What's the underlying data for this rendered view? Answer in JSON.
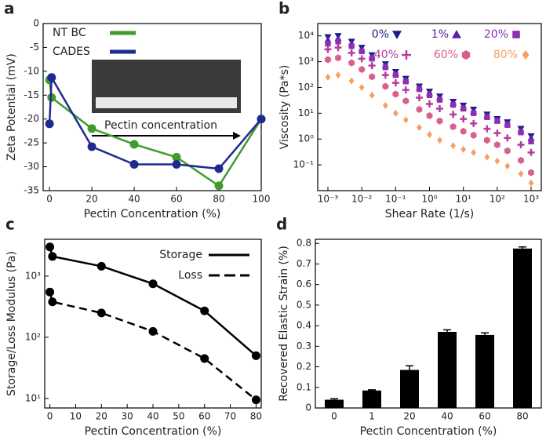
{
  "chart_data": [
    {
      "type": "line",
      "panel": "a",
      "xlabel": "Pectin Concentration (%)",
      "ylabel": "Zeta Potential (mV)",
      "x": [
        0,
        1,
        20,
        40,
        60,
        80,
        100
      ],
      "series": [
        {
          "name": "NT BC",
          "color": "#3f9b2b",
          "marker": "circle",
          "values": [
            -11.8,
            -15.5,
            -22,
            -25.3,
            -28,
            -34,
            -20
          ]
        },
        {
          "name": "CADES",
          "color": "#1f2a90",
          "marker": "circle",
          "values": [
            -21,
            -11.3,
            -25.8,
            -29.5,
            -29.5,
            -30.4,
            -20
          ]
        }
      ],
      "xlim": [
        -3,
        100
      ],
      "xticks": [
        0,
        20,
        40,
        60,
        80,
        100
      ],
      "ylim": [
        -35,
        0
      ],
      "yticks": [
        -35,
        -30,
        -25,
        -20,
        -15,
        -10,
        -5,
        0
      ],
      "legend": "upper left",
      "annotation": "Pectin concentration"
    },
    {
      "type": "scatter",
      "panel": "b",
      "xlabel": "Shear Rate (1/s)",
      "ylabel": "Viscosity (Pa*s)",
      "xscale": "log",
      "yscale": "log",
      "x": [
        0.001,
        0.002,
        0.005,
        0.01,
        0.02,
        0.05,
        0.1,
        0.2,
        0.5,
        1,
        2,
        5,
        10,
        20,
        50,
        100,
        200,
        500,
        1000
      ],
      "series": [
        {
          "name": "0%",
          "color": "#1b1b8c",
          "marker": "triangle-down",
          "values": [
            9000,
            10000,
            6000,
            3500,
            1800,
            800,
            400,
            220,
            110,
            70,
            45,
            28,
            20,
            14,
            9,
            6,
            4.5,
            2.5,
            1.3
          ]
        },
        {
          "name": "1%",
          "color": "#5a22a3",
          "marker": "triangle-up",
          "values": [
            7000,
            8000,
            5000,
            3000,
            1600,
            700,
            350,
            200,
            100,
            60,
            40,
            25,
            17,
            12,
            8,
            5.5,
            4,
            2.2,
            1.1
          ]
        },
        {
          "name": "20%",
          "color": "#8e2fb3",
          "marker": "square",
          "values": [
            5000,
            6000,
            4000,
            2500,
            1300,
            600,
            300,
            170,
            85,
            50,
            33,
            21,
            15,
            10,
            7,
            5,
            3.5,
            1.8,
            0.8
          ]
        },
        {
          "name": "40%",
          "color": "#b23d9c",
          "marker": "plus",
          "values": [
            3000,
            3500,
            2200,
            1300,
            700,
            300,
            150,
            80,
            40,
            23,
            15,
            9,
            6,
            4,
            2.5,
            1.7,
            1.1,
            0.6,
            0.3
          ]
        },
        {
          "name": "60%",
          "color": "#d9608a",
          "marker": "hexagon",
          "values": [
            1200,
            1400,
            900,
            500,
            260,
            110,
            55,
            30,
            14,
            8,
            5,
            3,
            2,
            1.4,
            0.9,
            0.6,
            0.35,
            0.15,
            0.05
          ]
        },
        {
          "name": "80%",
          "color": "#f5a062",
          "marker": "diamond",
          "values": [
            250,
            300,
            180,
            100,
            50,
            20,
            10,
            5.5,
            2.8,
            1.5,
            0.9,
            0.55,
            0.4,
            0.3,
            0.2,
            0.14,
            0.09,
            0.045,
            0.02
          ]
        }
      ],
      "xlim": [
        0.0005,
        2000
      ],
      "xticks": [
        {
          "value": 0.001,
          "label": "10⁻³"
        },
        {
          "value": 0.01,
          "label": "10⁻²"
        },
        {
          "value": 0.1,
          "label": "10⁻¹"
        },
        {
          "value": 1,
          "label": "10⁰"
        },
        {
          "value": 10,
          "label": "10¹"
        },
        {
          "value": 100,
          "label": "10²"
        },
        {
          "value": 1000,
          "label": "10³"
        }
      ],
      "ylim": [
        0.01,
        30000
      ],
      "yticks": [
        {
          "value": 0.1,
          "label": "10⁻¹"
        },
        {
          "value": 1,
          "label": "10⁰"
        },
        {
          "value": 10,
          "label": "10¹"
        },
        {
          "value": 100,
          "label": "10²"
        },
        {
          "value": 1000,
          "label": "10³"
        },
        {
          "value": 10000,
          "label": "10⁴"
        }
      ],
      "legend": "upper right"
    },
    {
      "type": "line",
      "panel": "c",
      "xlabel": "Pectin Concentration (%)",
      "ylabel": "Storage/Loss Modulus (Pa)",
      "yscale": "log",
      "x": [
        0,
        1,
        20,
        40,
        60,
        80
      ],
      "series": [
        {
          "name": "Storage",
          "color": "#000000",
          "marker": "circle",
          "linestyle": "solid",
          "values": [
            3000,
            2100,
            1450,
            750,
            270,
            50
          ]
        },
        {
          "name": "Loss",
          "color": "#000000",
          "marker": "circle",
          "linestyle": "dash",
          "values": [
            550,
            380,
            250,
            125,
            45,
            9.5
          ]
        }
      ],
      "xlim": [
        -2,
        82
      ],
      "xticks": [
        0,
        10,
        20,
        30,
        40,
        50,
        60,
        70,
        80
      ],
      "ylim": [
        7,
        4000
      ],
      "yticks": [
        {
          "value": 10,
          "label": "10¹"
        },
        {
          "value": 100,
          "label": "10²"
        },
        {
          "value": 1000,
          "label": "10³"
        }
      ],
      "legend": "upper right"
    },
    {
      "type": "bar",
      "panel": "d",
      "xlabel": "Pectin Concentration (%)",
      "ylabel": "Recovered Elastic Strain (%)",
      "categories": [
        "0",
        "1",
        "20",
        "40",
        "60",
        "80"
      ],
      "values": [
        0.04,
        0.085,
        0.185,
        0.37,
        0.355,
        0.775
      ],
      "errors": [
        0.005,
        0.003,
        0.02,
        0.01,
        0.01,
        0.008
      ],
      "color": "#000000",
      "ylim": [
        0,
        0.82
      ],
      "yticks": [
        0,
        0.1,
        0.2,
        0.3,
        0.4,
        0.5,
        0.6,
        0.7,
        0.8
      ]
    }
  ]
}
